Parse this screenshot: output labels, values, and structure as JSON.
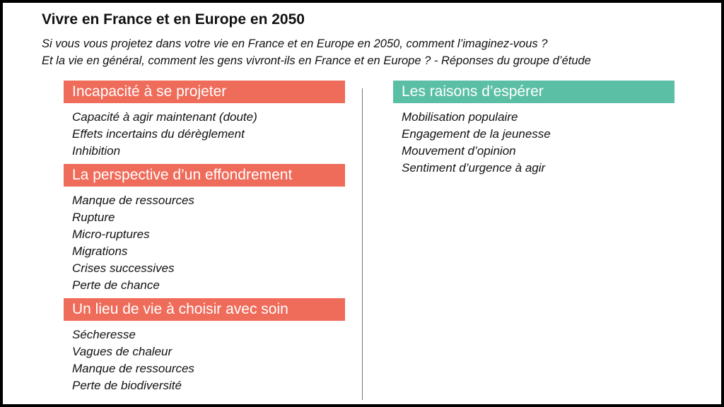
{
  "title": "Vivre en France et en Europe en 2050",
  "subtitle": [
    "Si vous vous projetez dans votre vie en France et en Europe en 2050, comment l’imaginez-vous ?",
    "Et la vie en général, comment les gens vivront-ils en France et en Europe ? - Réponses du groupe d’étude"
  ],
  "colors": {
    "red_header": "#ef6b5a",
    "green_header": "#5bbfa5"
  },
  "left_sections": [
    {
      "heading": "Incapacité à se projeter",
      "items": [
        "Capacité à agir maintenant (doute)",
        "Effets incertains du dérèglement",
        "Inhibition"
      ]
    },
    {
      "heading": "La perspective d’un effondrement",
      "items": [
        "Manque de ressources",
        "Rupture",
        "Micro-ruptures",
        "Migrations",
        "Crises successives",
        "Perte de chance"
      ]
    },
    {
      "heading": "Un lieu de vie à choisir avec soin",
      "items": [
        "Sécheresse",
        "Vagues de chaleur",
        "Manque de ressources",
        "Perte de biodiversité"
      ]
    }
  ],
  "right_sections": [
    {
      "heading": "Les raisons d’espérer",
      "items": [
        "Mobilisation populaire",
        "Engagement de la jeunesse",
        "Mouvement d’opinion",
        "Sentiment d’urgence à agir"
      ]
    }
  ]
}
